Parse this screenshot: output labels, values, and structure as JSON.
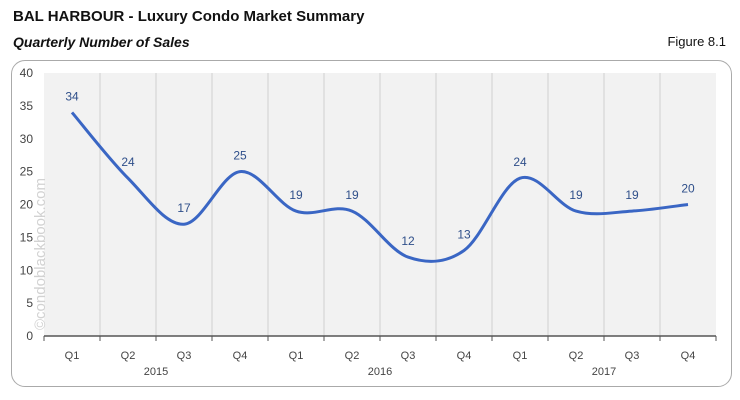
{
  "header": {
    "title": "BAL HARBOUR - Luxury Condo Market Summary",
    "subtitle": "Quarterly Number of Sales",
    "figure": "Figure 8.1"
  },
  "watermark": "©condoblackbook.com",
  "chart_data": {
    "type": "line",
    "categories": [
      "Q1",
      "Q2",
      "Q3",
      "Q4",
      "Q1",
      "Q2",
      "Q3",
      "Q4",
      "Q1",
      "Q2",
      "Q3",
      "Q4"
    ],
    "year_labels": [
      {
        "label": "2015",
        "category_index": 1
      },
      {
        "label": "2016",
        "category_index": 5
      },
      {
        "label": "2017",
        "category_index": 9
      }
    ],
    "values": [
      34,
      24,
      17,
      25,
      19,
      19,
      12,
      13,
      24,
      19,
      19,
      20
    ],
    "ylim": [
      0,
      40
    ],
    "yticks": [
      0,
      5,
      10,
      15,
      20,
      25,
      30,
      35,
      40
    ],
    "smooth": true,
    "grid": "vertical",
    "line_color": "#3a66c4",
    "label_color": "#2f4f8a",
    "plot_bg": "#f2f2f2"
  }
}
